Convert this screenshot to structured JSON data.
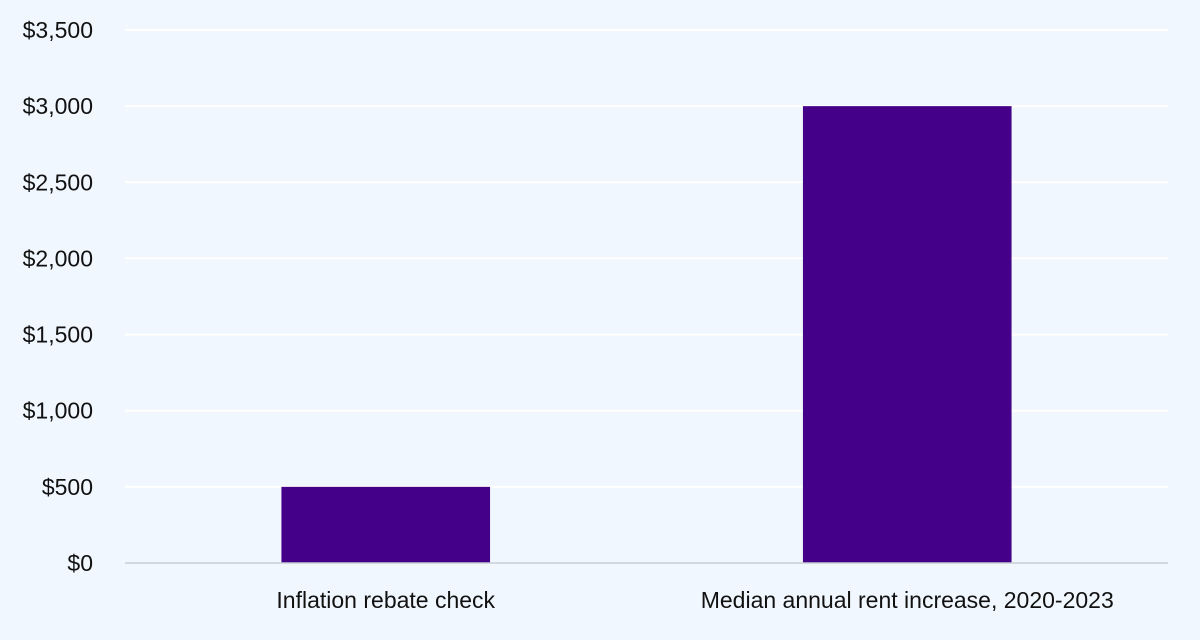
{
  "chart_data": {
    "type": "bar",
    "title": "",
    "xlabel": "",
    "ylabel": "",
    "categories": [
      "Inflation rebate check",
      "Median annual rent increase, 2020-2023"
    ],
    "values": [
      500,
      3000
    ],
    "ylim": [
      0,
      3500
    ],
    "yticks": [
      0,
      500,
      1000,
      1500,
      2000,
      2500,
      3000,
      3500
    ],
    "ytick_labels": [
      "$0",
      "$500",
      "$1,000",
      "$1,500",
      "$2,000",
      "$2,500",
      "$3,000",
      "$3,500"
    ],
    "grid": true,
    "legend": "none",
    "colors": {
      "bar": "#440088",
      "background": "#F0F7FE",
      "gridline": "#FFFFFF",
      "axis": "#C8CED6"
    }
  }
}
